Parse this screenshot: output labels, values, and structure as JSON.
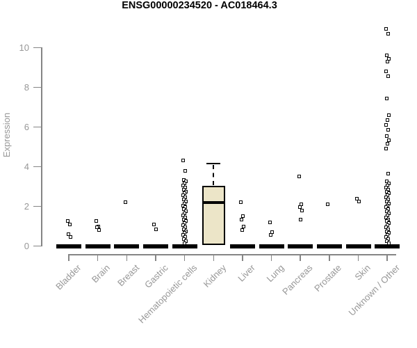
{
  "chart_data": {
    "type": "box",
    "title": "ENSG00000234520 - AC018464.3",
    "ylabel": "Expression",
    "xlabel": "",
    "ylim": [
      0,
      11.2
    ],
    "yticks": [
      0,
      2,
      4,
      6,
      8,
      10
    ],
    "grid": false,
    "legend": null,
    "categories": [
      "Bladder",
      "Brain",
      "Breast",
      "Gastric",
      "Hematopoietic cells",
      "Kidney",
      "Liver",
      "Lung",
      "Pancreas",
      "Prostate",
      "Skin",
      "Unknown / Other"
    ],
    "groups": [
      {
        "name": "Bladder",
        "points": [
          1.25,
          1.1,
          0.6,
          0.45
        ],
        "zero_cluster": true,
        "box": null
      },
      {
        "name": "Brain",
        "points": [
          1.25,
          1.0,
          0.95,
          0.8
        ],
        "zero_cluster": true,
        "box": null
      },
      {
        "name": "Breast",
        "points": [
          2.2
        ],
        "zero_cluster": true,
        "box": null
      },
      {
        "name": "Gastric",
        "points": [
          1.1,
          0.85
        ],
        "zero_cluster": true,
        "box": null
      },
      {
        "name": "Hematopoietic cells",
        "points": [
          4.3,
          3.8,
          3.35,
          3.25,
          3.15,
          3.05,
          2.95,
          2.85,
          2.75,
          2.65,
          2.55,
          2.45,
          2.35,
          2.25,
          2.15,
          2.05,
          1.95,
          1.85,
          1.75,
          1.65,
          1.55,
          1.45,
          1.35,
          1.25,
          1.15,
          1.05,
          0.95,
          0.85,
          0.75,
          0.65,
          0.55,
          0.45,
          0.35,
          0.25,
          0.15
        ],
        "zero_cluster": true,
        "box": null
      },
      {
        "name": "Kidney",
        "points": [],
        "zero_cluster": false,
        "box": {
          "whisker_high": 4.15,
          "q3": 3.05,
          "median": 2.2,
          "q1": 0.05
        }
      },
      {
        "name": "Liver",
        "points": [
          2.2,
          1.5,
          1.35,
          1.0,
          0.8
        ],
        "zero_cluster": true,
        "box": null
      },
      {
        "name": "Lung",
        "points": [
          1.2,
          0.7,
          0.55
        ],
        "zero_cluster": true,
        "box": null
      },
      {
        "name": "Pancreas",
        "points": [
          3.5,
          2.1,
          1.95,
          1.8,
          1.35
        ],
        "zero_cluster": true,
        "box": null
      },
      {
        "name": "Prostate",
        "points": [
          2.1
        ],
        "zero_cluster": true,
        "box": null
      },
      {
        "name": "Skin",
        "points": [
          2.4,
          2.25
        ],
        "zero_cluster": true,
        "box": null
      },
      {
        "name": "Unknown / Other",
        "points": [
          10.95,
          10.7,
          9.6,
          9.45,
          9.3,
          8.8,
          8.55,
          7.45,
          6.6,
          6.35,
          6.1,
          5.85,
          5.55,
          5.35,
          5.15,
          4.9,
          3.65,
          3.25,
          3.15,
          3.05,
          2.95,
          2.85,
          2.75,
          2.65,
          2.55,
          2.45,
          2.35,
          2.25,
          2.15,
          2.05,
          1.95,
          1.85,
          1.75,
          1.65,
          1.55,
          1.45,
          1.35,
          1.25,
          1.15,
          1.05,
          0.95,
          0.85,
          0.75,
          0.65,
          0.55,
          0.45,
          0.35,
          0.25,
          0.15
        ],
        "zero_cluster": true,
        "box": null
      }
    ],
    "colors": {
      "box_fill": "#ece5c8",
      "box_border": "#000000",
      "marker": "#000000",
      "axis_line": "#858585",
      "tick_text": "#979797",
      "title_text": "#000000"
    }
  }
}
